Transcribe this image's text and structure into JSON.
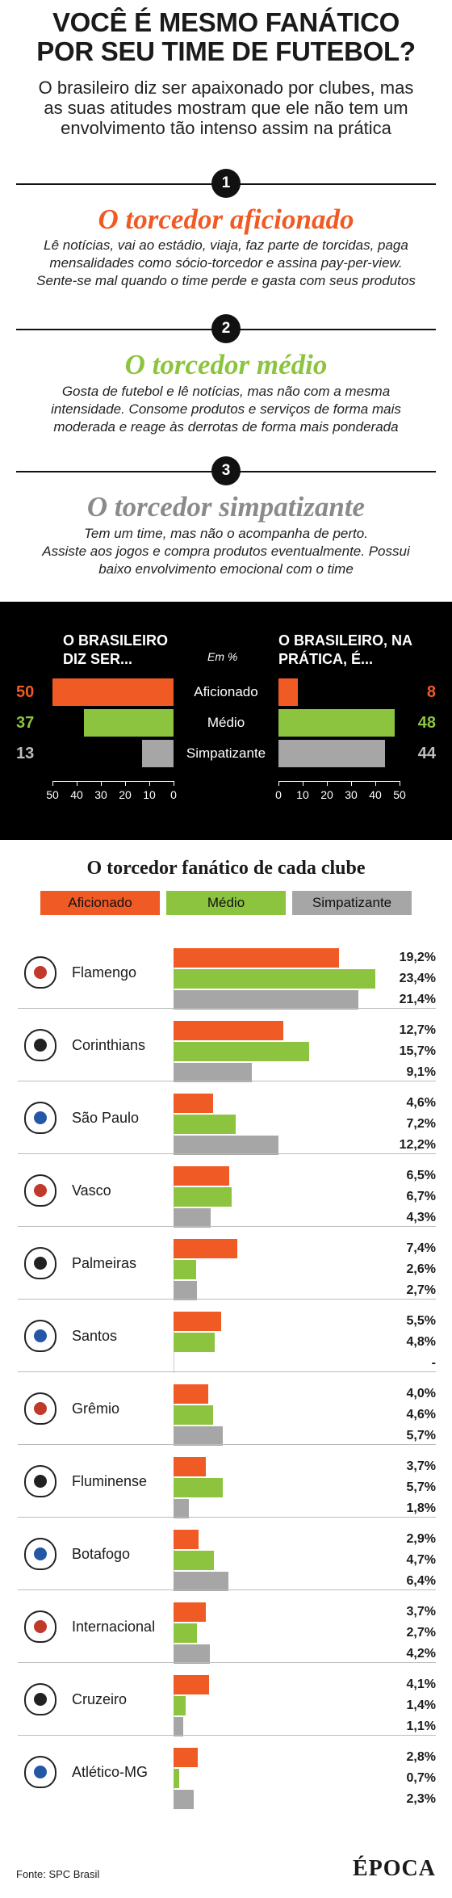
{
  "header": {
    "title_line1": "VOCÊ É MESMO FANÁTICO",
    "title_line2": "POR SEU TIME DE FUTEBOL?",
    "subtitle_line1": "O brasileiro diz ser apaixonado por clubes, mas",
    "subtitle_line2": "as suas atitudes mostram que ele não tem um",
    "subtitle_line3": "envolvimento tão intenso assim na prática"
  },
  "types": [
    {
      "number": "1",
      "title": "O torcedor aficionado",
      "color": "#f05a24",
      "desc": [
        "Lê notícias, vai ao estádio, viaja, faz parte de torcidas, paga",
        "mensalidades como sócio-torcedor e assina pay-per-view.",
        "Sente-se mal quando o time perde e gasta com seus produtos"
      ]
    },
    {
      "number": "2",
      "title": "O torcedor médio",
      "color": "#8cc43f",
      "desc": [
        "Gosta de futebol e lê notícias, mas não com a mesma",
        "intensidade. Consome produtos e serviços de forma mais",
        "moderada e reage às derrotas de forma mais ponderada"
      ]
    },
    {
      "number": "3",
      "title": "O torcedor simpatizante",
      "color": "#8a8a8a",
      "desc": [
        "Tem um time, mas não o acompanha de perto.",
        "Assiste aos jogos e compra produtos eventualmente. Possui",
        "baixo envolvimento emocional com o time"
      ]
    }
  ],
  "colors": {
    "aficionado": "#f05a24",
    "medio": "#8cc43f",
    "simpatizante": "#a6a6a6"
  },
  "chart_data": [
    {
      "type": "bar",
      "title": "",
      "left_heading": [
        "O BRASILEIRO",
        "DIZ SER..."
      ],
      "right_heading": [
        "O BRASILEIRO, NA",
        "PRÁTICA, É..."
      ],
      "unit_note": "Em %",
      "categories": [
        "Aficionado",
        "Médio",
        "Simpatizante"
      ],
      "series": [
        {
          "name": "O brasileiro diz ser...",
          "values": [
            50,
            37,
            13
          ]
        },
        {
          "name": "O brasileiro, na prática, é...",
          "values": [
            8,
            48,
            44
          ]
        }
      ],
      "left_ticks": [
        "50",
        "40",
        "30",
        "20",
        "10",
        "0"
      ],
      "right_ticks": [
        "0",
        "10",
        "20",
        "30",
        "40",
        "50"
      ],
      "xlim": [
        0,
        50
      ]
    },
    {
      "type": "bar",
      "title": "O torcedor fanático de cada clube",
      "legend": [
        "Aficionado",
        "Médio",
        "Simpatizante"
      ],
      "categories": [
        "Flamengo",
        "Corinthians",
        "São Paulo",
        "Vasco",
        "Palmeiras",
        "Santos",
        "Grêmio",
        "Fluminense",
        "Botafogo",
        "Internacional",
        "Cruzeiro",
        "Atlético-MG"
      ],
      "series": [
        {
          "name": "Aficionado",
          "values": [
            19.2,
            12.7,
            4.6,
            6.5,
            7.4,
            5.5,
            4.0,
            3.7,
            2.9,
            3.7,
            4.1,
            2.8
          ],
          "labels": [
            "19,2%",
            "12,7%",
            "4,6%",
            "6,5%",
            "7,4%",
            "5,5%",
            "4,0%",
            "3,7%",
            "2,9%",
            "3,7%",
            "4,1%",
            "2,8%"
          ]
        },
        {
          "name": "Médio",
          "values": [
            23.4,
            15.7,
            7.2,
            6.7,
            2.6,
            4.8,
            4.6,
            5.7,
            4.7,
            2.7,
            1.4,
            0.7
          ],
          "labels": [
            "23,4%",
            "15,7%",
            "7,2%",
            "6,7%",
            "2,6%",
            "4,8%",
            "4,6%",
            "5,7%",
            "4,7%",
            "2,7%",
            "1,4%",
            "0,7%"
          ]
        },
        {
          "name": "Simpatizante",
          "values": [
            21.4,
            9.1,
            12.2,
            4.3,
            2.7,
            null,
            5.7,
            1.8,
            6.4,
            4.2,
            1.1,
            2.3
          ],
          "labels": [
            "21,4%",
            "9,1%",
            "12,2%",
            "4,3%",
            "2,7%",
            "-",
            "5,7%",
            "1,8%",
            "6,4%",
            "4,2%",
            "1,1%",
            "2,3%"
          ]
        }
      ],
      "xlim": [
        0,
        23.4
      ]
    }
  ],
  "footer": {
    "source": "Fonte: SPC Brasil",
    "brand": "ÉPOCA"
  }
}
